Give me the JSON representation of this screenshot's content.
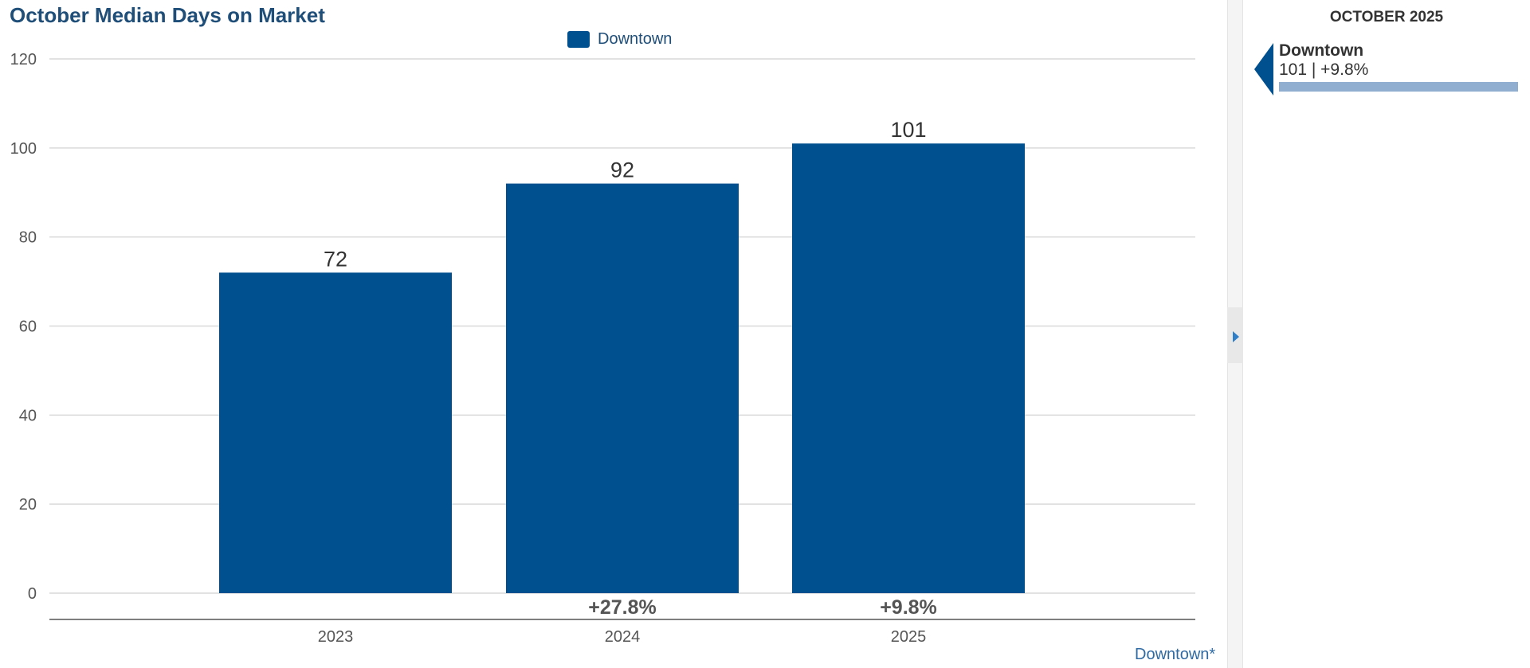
{
  "title": "October Median Days on Market",
  "legend": {
    "label": "Downtown",
    "color": "#004f8f"
  },
  "footnote": "Downtown*",
  "chart_data": {
    "type": "bar",
    "categories": [
      "2023",
      "2024",
      "2025"
    ],
    "series": [
      {
        "name": "Downtown",
        "values": [
          72,
          92,
          101
        ]
      }
    ],
    "data_labels": [
      "72",
      "92",
      "101"
    ],
    "change_labels": [
      "",
      "+27.8%",
      "+9.8%"
    ],
    "ylim": [
      0,
      120
    ],
    "yticks": [
      0,
      20,
      40,
      60,
      80,
      100,
      120
    ],
    "grid": true,
    "legend_position": "top-center",
    "colors": {
      "bar": "#004f8f",
      "grid": "#d9d9d9",
      "axis": "#555555"
    }
  },
  "side_panel": {
    "heading": "OCTOBER 2025",
    "items": [
      {
        "name": "Downtown",
        "value_text": "101 | +9.8%",
        "fraction": 1.0
      }
    ]
  }
}
